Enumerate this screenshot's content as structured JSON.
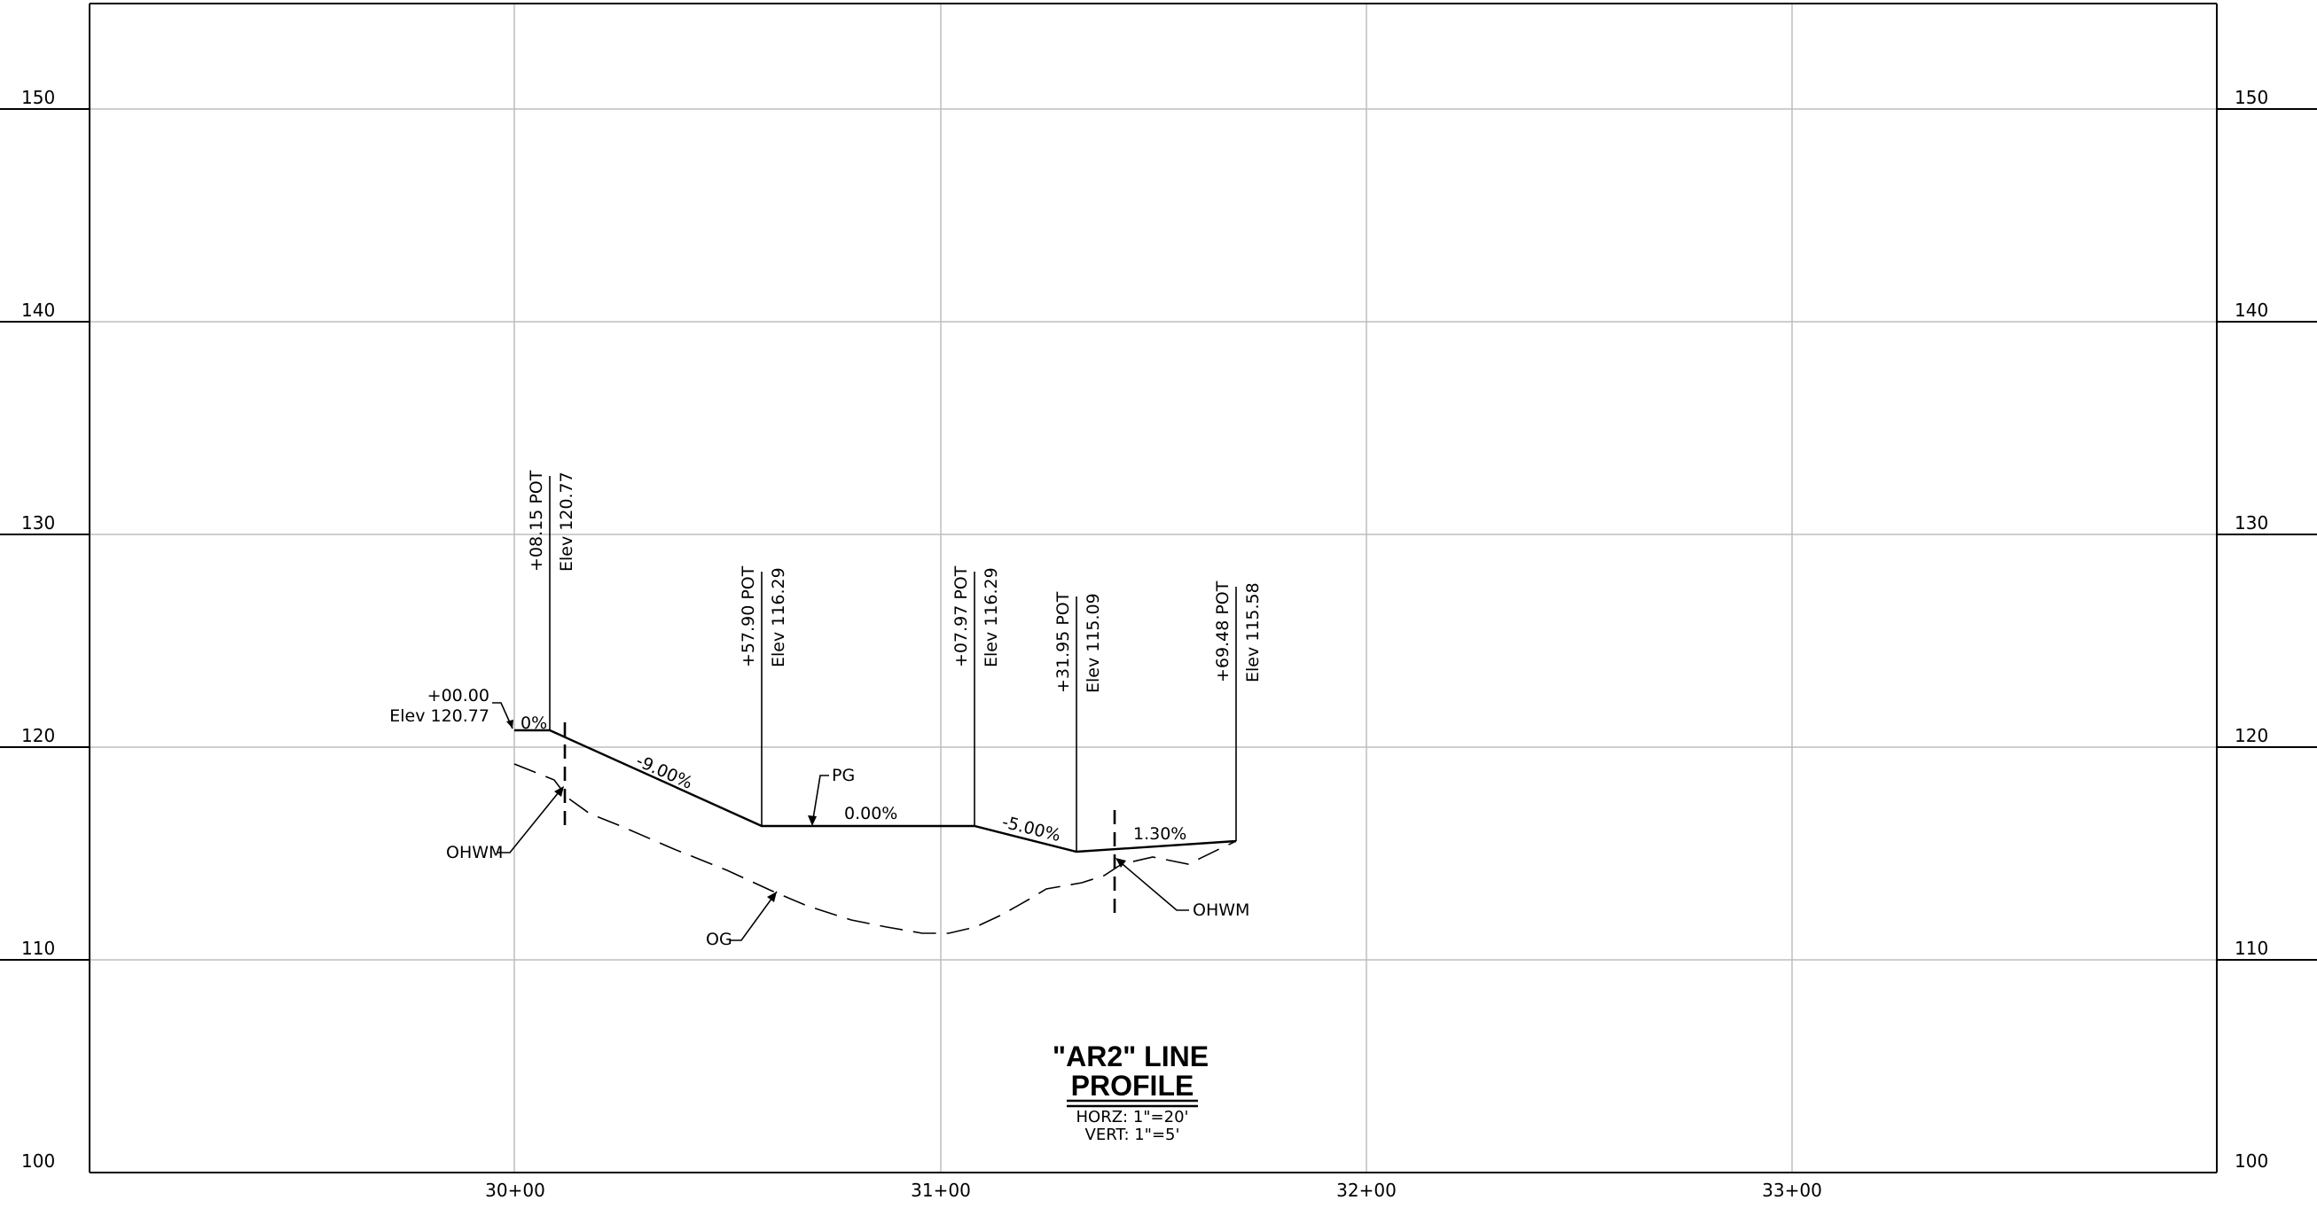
{
  "y_axis": {
    "labels": [
      "150",
      "140",
      "130",
      "120",
      "110",
      "100"
    ]
  },
  "x_axis": {
    "labels": [
      "30+00",
      "31+00",
      "32+00",
      "33+00"
    ]
  },
  "pvi_labels": [
    {
      "station": "+08.15 POT",
      "elev": "Elev 120.77"
    },
    {
      "station": "+57.90 POT",
      "elev": "Elev 116.29"
    },
    {
      "station": "+07.97 POT",
      "elev": "Elev 116.29"
    },
    {
      "station": "+31.95 POT",
      "elev": "Elev 115.09"
    },
    {
      "station": "+69.48 POT",
      "elev": "Elev 115.58"
    }
  ],
  "start_label": {
    "station": "+00.00",
    "elev": "Elev 120.77"
  },
  "grades": [
    "0%",
    "-9.00%",
    "0.00%",
    "-5.00%",
    "1.30%"
  ],
  "callouts": {
    "pg": "PG",
    "og": "OG",
    "ohwm_left": "OHWM",
    "ohwm_right": "OHWM"
  },
  "title": {
    "line1": "\"AR2\" LINE",
    "line2": "PROFILE",
    "horz": "HORZ: 1\"=20'",
    "vert": "VERT: 1\"=5'"
  }
}
